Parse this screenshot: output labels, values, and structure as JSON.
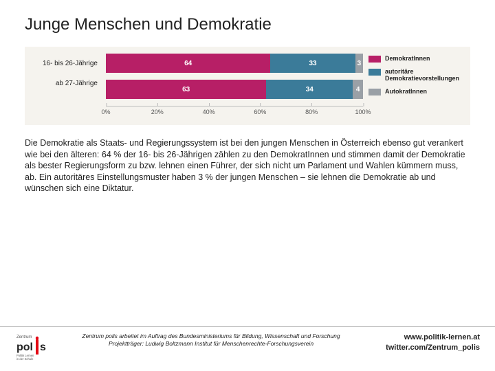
{
  "title": "Junge Menschen und Demokratie",
  "chart": {
    "type": "stacked-bar-horizontal",
    "background_color": "#f5f3ee",
    "categories": [
      "16- bis 26-Jährige",
      "ab 27-Jährige"
    ],
    "series": [
      {
        "name": "DemokratInnen",
        "color": "#b71f66",
        "values": [
          64,
          63
        ]
      },
      {
        "name": "autoritäre Demokratievorstellungen",
        "color": "#3b7b99",
        "values": [
          33,
          34
        ]
      },
      {
        "name": "AutokratInnen",
        "color": "#9aa0a6",
        "values": [
          3,
          4
        ]
      }
    ],
    "xlim": [
      0,
      100
    ],
    "xtick_step": 20,
    "xtick_labels": [
      "0%",
      "20%",
      "40%",
      "60%",
      "80%",
      "100%"
    ],
    "value_label_color": "#ffffff",
    "value_label_fontsize": 10,
    "category_label_fontsize": 10,
    "legend_fontsize": 9
  },
  "body_text": "Die Demokratie als Staats- und Regierungssystem ist bei den jungen Menschen in Österreich ebenso gut verankert wie bei den älteren: 64 % der 16- bis 26-Jährigen zählen zu den DemokratInnen und stimmen damit der Demokratie als bester Regierungsform zu bzw. lehnen einen Führer, der sich nicht um Parlament und Wahlen kümmern muss, ab. Ein autoritäres Einstellungsmuster haben 3 % der jungen Menschen – sie lehnen die Demokratie ab und wünschen sich eine Diktatur.",
  "footer": {
    "logo_text_top": "Zentrum",
    "logo_text_main": "polis",
    "logo_subtext": "Politik Lernen in der Schule",
    "credit_line1": "Zentrum polis arbeitet im Auftrag des Bundesministeriums für Bildung, Wissenschaft und Forschung",
    "credit_line2": "Projektträger: Ludwig Boltzmann Institut für Menschenrechte-Forschungsverein",
    "link1": "www.politik-lernen.at",
    "link2": "twitter.com/Zentrum_polis"
  }
}
